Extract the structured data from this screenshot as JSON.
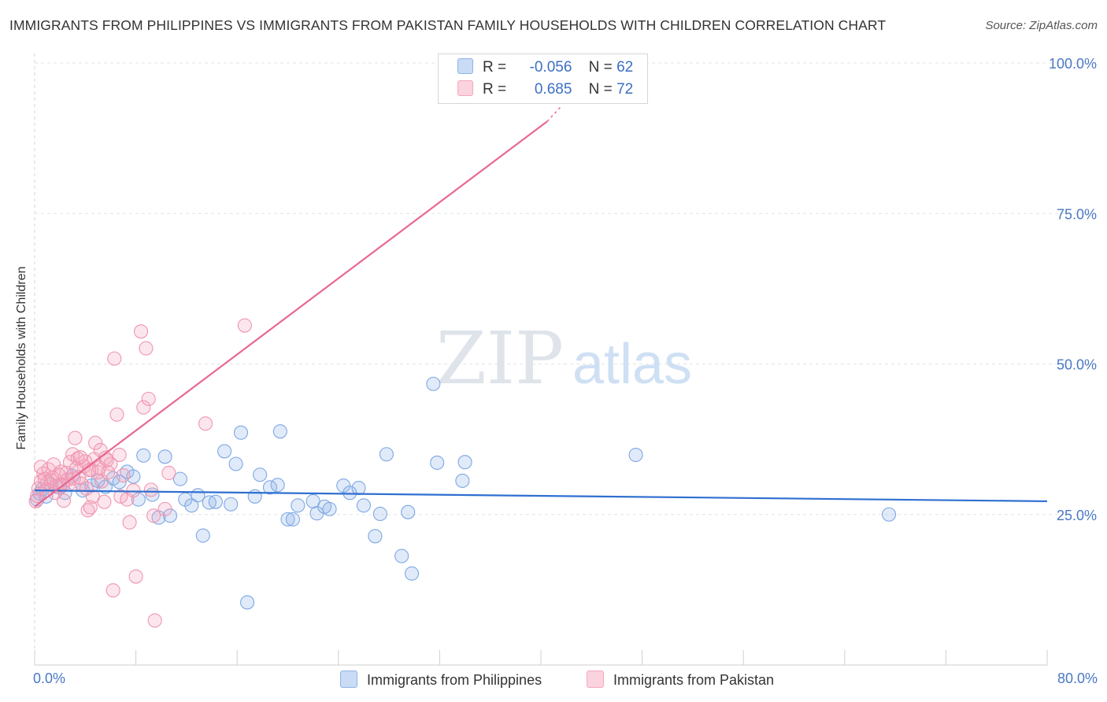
{
  "header": {
    "title": "IMMIGRANTS FROM PHILIPPINES VS IMMIGRANTS FROM PAKISTAN FAMILY HOUSEHOLDS WITH CHILDREN CORRELATION CHART",
    "source": "Source: ZipAtlas.com"
  },
  "watermark": {
    "zip": "ZIP",
    "atlas": "atlas"
  },
  "legend_top": {
    "rows": [
      {
        "r_label": "R =",
        "r_value": "-0.056",
        "n_label": "N =",
        "n_value": "62",
        "color": "#8fb4e8"
      },
      {
        "r_label": "R =",
        "r_value": " 0.685",
        "n_label": "N =",
        "n_value": "72",
        "color": "#f4a7bd"
      }
    ]
  },
  "legend_bottom": {
    "items": [
      {
        "label": "Immigrants from Philippines",
        "color": "#8fb4e8"
      },
      {
        "label": "Immigrants from Pakistan",
        "color": "#f4a7bd"
      }
    ]
  },
  "chart_data": {
    "type": "scatter",
    "title": "IMMIGRANTS FROM PHILIPPINES VS IMMIGRANTS FROM PAKISTAN FAMILY HOUSEHOLDS WITH CHILDREN CORRELATION CHART",
    "xlabel": "",
    "ylabel": "Family Households with Children",
    "xlim": [
      0,
      80
    ],
    "ylim": [
      0,
      102
    ],
    "x_tick_labels": [
      "0.0%",
      "80.0%"
    ],
    "y_ticks": [
      25,
      50,
      75,
      100
    ],
    "y_tick_labels": [
      "25.0%",
      "50.0%",
      "75.0%",
      "100.0%"
    ],
    "grid": true,
    "legend_position": "top-center",
    "series": [
      {
        "name": "Immigrants from Philippines",
        "color": "#8fb4e8",
        "line_color": "#2f6fd0",
        "trend": {
          "x": [
            0,
            80
          ],
          "y": [
            29.0,
            27.2
          ]
        },
        "points": [
          [
            0.2,
            27.5
          ],
          [
            0.4,
            28.5
          ],
          [
            0.6,
            29.2
          ],
          [
            0.9,
            28.0
          ],
          [
            1.3,
            30.0
          ],
          [
            2.0,
            29.5
          ],
          [
            2.4,
            28.6
          ],
          [
            3.0,
            31.4
          ],
          [
            3.8,
            29.0
          ],
          [
            4.5,
            29.8
          ],
          [
            5.0,
            30.6
          ],
          [
            5.6,
            29.6
          ],
          [
            6.2,
            31.0
          ],
          [
            6.7,
            30.4
          ],
          [
            7.3,
            32.1
          ],
          [
            7.8,
            31.3
          ],
          [
            8.2,
            27.5
          ],
          [
            8.6,
            34.8
          ],
          [
            9.3,
            28.3
          ],
          [
            9.8,
            24.5
          ],
          [
            10.3,
            34.6
          ],
          [
            10.7,
            24.8
          ],
          [
            11.5,
            30.9
          ],
          [
            11.9,
            27.5
          ],
          [
            12.4,
            26.5
          ],
          [
            12.9,
            28.2
          ],
          [
            13.3,
            21.5
          ],
          [
            13.8,
            27.0
          ],
          [
            14.3,
            27.1
          ],
          [
            15.0,
            35.5
          ],
          [
            15.5,
            26.7
          ],
          [
            15.9,
            33.4
          ],
          [
            16.3,
            38.6
          ],
          [
            16.8,
            10.4
          ],
          [
            17.4,
            28.0
          ],
          [
            17.8,
            31.6
          ],
          [
            18.6,
            29.5
          ],
          [
            19.2,
            29.9
          ],
          [
            19.4,
            38.8
          ],
          [
            20.0,
            24.2
          ],
          [
            20.4,
            24.2
          ],
          [
            20.8,
            26.5
          ],
          [
            22.0,
            27.2
          ],
          [
            22.3,
            25.2
          ],
          [
            22.9,
            26.3
          ],
          [
            23.3,
            25.9
          ],
          [
            24.4,
            29.8
          ],
          [
            24.9,
            28.6
          ],
          [
            25.6,
            29.4
          ],
          [
            26.0,
            26.5
          ],
          [
            26.9,
            21.4
          ],
          [
            27.3,
            25.1
          ],
          [
            27.8,
            35.0
          ],
          [
            29.0,
            18.1
          ],
          [
            29.5,
            25.4
          ],
          [
            29.8,
            15.2
          ],
          [
            31.5,
            46.7
          ],
          [
            31.8,
            33.6
          ],
          [
            33.8,
            30.6
          ],
          [
            34.0,
            33.7
          ],
          [
            47.5,
            34.9
          ],
          [
            67.5,
            25.0
          ]
        ]
      },
      {
        "name": "Immigrants from Pakistan",
        "color": "#f4a7bd",
        "line_color": "#e8688f",
        "trend": {
          "x": [
            0,
            40.5
          ],
          "y": [
            26.3,
            90.3
          ]
        },
        "points": [
          [
            0.1,
            27.2
          ],
          [
            0.3,
            29.3
          ],
          [
            0.5,
            30.5
          ],
          [
            0.7,
            31.8
          ],
          [
            0.9,
            29.0
          ],
          [
            1.1,
            32.5
          ],
          [
            1.3,
            30.7
          ],
          [
            1.5,
            33.3
          ],
          [
            1.7,
            29.6
          ],
          [
            1.9,
            31.6
          ],
          [
            2.1,
            32.1
          ],
          [
            2.3,
            27.3
          ],
          [
            2.5,
            31.9
          ],
          [
            2.7,
            30.0
          ],
          [
            2.8,
            33.7
          ],
          [
            3.0,
            35.0
          ],
          [
            3.2,
            37.7
          ],
          [
            3.4,
            34.3
          ],
          [
            3.5,
            31.2
          ],
          [
            3.7,
            30.1
          ],
          [
            3.9,
            33.0
          ],
          [
            4.1,
            29.3
          ],
          [
            4.2,
            25.7
          ],
          [
            4.4,
            26.2
          ],
          [
            4.5,
            32.4
          ],
          [
            4.7,
            34.2
          ],
          [
            4.8,
            36.9
          ],
          [
            5.0,
            32.0
          ],
          [
            5.2,
            35.7
          ],
          [
            5.3,
            30.5
          ],
          [
            5.5,
            27.1
          ],
          [
            5.6,
            34.4
          ],
          [
            5.8,
            32.0
          ],
          [
            6.0,
            33.4
          ],
          [
            6.2,
            12.4
          ],
          [
            6.3,
            50.9
          ],
          [
            6.5,
            41.6
          ],
          [
            6.7,
            34.9
          ],
          [
            6.8,
            28.0
          ],
          [
            7.0,
            31.5
          ],
          [
            7.3,
            27.5
          ],
          [
            7.5,
            23.7
          ],
          [
            7.8,
            29.0
          ],
          [
            8.0,
            14.7
          ],
          [
            8.4,
            55.4
          ],
          [
            8.6,
            42.8
          ],
          [
            8.8,
            52.6
          ],
          [
            9.0,
            44.2
          ],
          [
            9.2,
            29.1
          ],
          [
            9.4,
            24.8
          ],
          [
            9.5,
            7.4
          ],
          [
            10.3,
            25.9
          ],
          [
            10.6,
            31.9
          ],
          [
            13.5,
            40.1
          ],
          [
            16.6,
            56.4
          ],
          [
            1.0,
            30.3
          ],
          [
            1.6,
            28.6
          ],
          [
            2.2,
            29.8
          ],
          [
            2.6,
            30.8
          ],
          [
            3.3,
            32.7
          ],
          [
            4.0,
            33.8
          ],
          [
            4.6,
            28.0
          ],
          [
            5.1,
            32.8
          ],
          [
            5.7,
            34.0
          ],
          [
            0.2,
            28.1
          ],
          [
            0.8,
            30.9
          ],
          [
            1.4,
            31.1
          ],
          [
            2.0,
            29.9
          ],
          [
            3.1,
            31.0
          ],
          [
            3.6,
            34.5
          ],
          [
            4.3,
            32.4
          ],
          [
            0.5,
            32.9
          ]
        ]
      }
    ]
  }
}
